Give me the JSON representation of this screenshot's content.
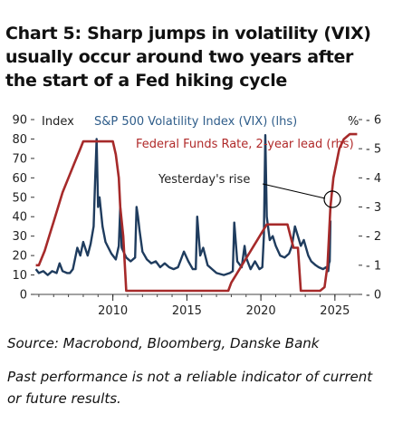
{
  "title_lines": [
    "Chart 5: Sharp jumps in volatility (VIX)",
    "usually occur around two years after",
    "the start of a Fed hiking cycle"
  ],
  "source": "Source: Macrobond, Bloomberg, Danske Bank",
  "disclaimer": "Past performance is not a reliable indicator of current or future results.",
  "colors": {
    "vix": "#1f3c5e",
    "fed": "#a62a2a",
    "vix_label": "#2f5d8a",
    "fed_label": "#b02a2a"
  },
  "chart_data": {
    "type": "line",
    "left_axis": {
      "label": "Index",
      "ticks": [
        0,
        10,
        20,
        30,
        40,
        50,
        60,
        70,
        80,
        90
      ],
      "range": [
        0,
        90
      ]
    },
    "right_axis": {
      "label": "%",
      "ticks": [
        0,
        1,
        2,
        3,
        4,
        5,
        6
      ],
      "range": [
        0,
        6
      ]
    },
    "x_axis": {
      "ticks": [
        2010,
        2015,
        2020,
        2025
      ],
      "range": [
        2004.7,
        2026.6
      ]
    },
    "annotation": "Yesterday's rise",
    "series": [
      {
        "name": "S&P 500 Volatility Index (VIX) (lhs)",
        "axis": "left",
        "x": [
          2004.8,
          2005.0,
          2005.3,
          2005.6,
          2005.9,
          2006.2,
          2006.4,
          2006.6,
          2006.9,
          2007.1,
          2007.3,
          2007.6,
          2007.8,
          2008.0,
          2008.3,
          2008.5,
          2008.7,
          2008.8,
          2008.9,
          2009.0,
          2009.1,
          2009.3,
          2009.5,
          2009.7,
          2009.9,
          2010.2,
          2010.4,
          2010.5,
          2010.6,
          2010.9,
          2011.2,
          2011.5,
          2011.6,
          2011.7,
          2011.8,
          2012.0,
          2012.3,
          2012.6,
          2012.9,
          2013.2,
          2013.5,
          2013.8,
          2014.1,
          2014.4,
          2014.8,
          2015.1,
          2015.4,
          2015.6,
          2015.7,
          2015.9,
          2016.1,
          2016.4,
          2016.7,
          2017.0,
          2017.5,
          2017.9,
          2018.1,
          2018.2,
          2018.4,
          2018.7,
          2018.9,
          2019.0,
          2019.3,
          2019.6,
          2019.9,
          2020.1,
          2020.2,
          2020.3,
          2020.4,
          2020.6,
          2020.8,
          2021.0,
          2021.3,
          2021.6,
          2021.9,
          2022.1,
          2022.3,
          2022.5,
          2022.7,
          2022.9,
          2023.2,
          2023.4,
          2023.7,
          2023.9,
          2024.2,
          2024.4,
          2024.55,
          2024.6,
          2024.65,
          2024.7
        ],
        "y": [
          13,
          11,
          12,
          10,
          12,
          11,
          16,
          12,
          11,
          11,
          13,
          24,
          20,
          27,
          20,
          26,
          35,
          58,
          80,
          45,
          50,
          35,
          27,
          24,
          21,
          18,
          25,
          45,
          24,
          19,
          17,
          19,
          45,
          40,
          33,
          22,
          18,
          16,
          17,
          14,
          16,
          14,
          13,
          14,
          22,
          17,
          13,
          13,
          40,
          20,
          24,
          15,
          13,
          11,
          10,
          11,
          12,
          37,
          17,
          14,
          25,
          19,
          13,
          17,
          13,
          14,
          30,
          82,
          40,
          28,
          30,
          25,
          20,
          19,
          21,
          25,
          35,
          30,
          25,
          28,
          20,
          17,
          15,
          14,
          13,
          14,
          12,
          16,
          17,
          38
        ]
      },
      {
        "name": "Federal Funds Rate, 2-year lead (rhs)",
        "axis": "right",
        "x": [
          2004.8,
          2005.0,
          2005.4,
          2005.7,
          2006.0,
          2006.3,
          2006.6,
          2007.0,
          2007.4,
          2007.8,
          2008.0,
          2008.3,
          2008.6,
          2008.9,
          2009.1,
          2009.3,
          2009.6,
          2010.0,
          2010.2,
          2010.4,
          2010.5,
          2010.7,
          2010.9,
          2016.0,
          2017.8,
          2018.0,
          2018.3,
          2018.6,
          2018.9,
          2019.2,
          2019.5,
          2019.8,
          2020.1,
          2020.4,
          2020.7,
          2021.0,
          2021.3,
          2021.8,
          2022.0,
          2022.2,
          2022.5,
          2022.7,
          2023.0,
          2024.0,
          2024.3,
          2024.5,
          2024.7,
          2024.9,
          2025.1,
          2025.3,
          2025.6,
          2026.0,
          2026.5
        ],
        "y": [
          1.0,
          1.0,
          1.5,
          2.0,
          2.5,
          3.0,
          3.5,
          4.0,
          4.5,
          5.0,
          5.25,
          5.25,
          5.25,
          5.25,
          5.25,
          5.25,
          5.25,
          5.25,
          4.8,
          4.0,
          3.0,
          2.0,
          0.125,
          0.125,
          0.125,
          0.4,
          0.65,
          0.9,
          1.15,
          1.4,
          1.65,
          1.9,
          2.15,
          2.4,
          2.4,
          2.4,
          2.4,
          2.4,
          2.0,
          1.6,
          1.6,
          0.125,
          0.125,
          0.125,
          0.25,
          1.0,
          3.0,
          4.0,
          4.5,
          5.0,
          5.33,
          5.5,
          5.5
        ]
      }
    ]
  }
}
